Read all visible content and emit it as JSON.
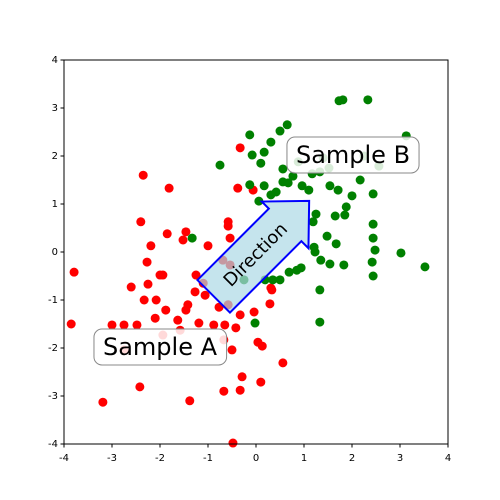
{
  "chart_data": {
    "type": "scatter",
    "xlim": [
      -4,
      4
    ],
    "ylim": [
      -4,
      4
    ],
    "xticks": [
      -4,
      -3,
      -2,
      -1,
      0,
      1,
      2,
      3,
      4
    ],
    "yticks": [
      -4,
      -3,
      -2,
      -1,
      0,
      1,
      2,
      3,
      4
    ],
    "annotations": [
      "Sample A",
      "Sample B",
      "Direction"
    ],
    "series": [
      {
        "color": "#ff0000",
        "x": [
          -3.79,
          -3.85,
          -3.19,
          -2.42,
          -2.35,
          -2.4,
          -1.81,
          -2.19,
          -2.27,
          -2.25,
          -2.6,
          -2.33,
          -2.0,
          -1.94,
          -2.08,
          -1.85,
          -1.46,
          -1.52,
          -1.0,
          -1.25,
          -1.27,
          -1.06,
          -1.1,
          -1.42,
          -1.46,
          -1.63,
          -1.58,
          -1.88,
          -2.1,
          -1.94,
          -2.48,
          -2.75,
          -3.0,
          -2.75,
          -1.19,
          -0.88,
          -0.65,
          -0.42,
          -0.33,
          -0.58,
          -0.77,
          -0.04,
          0.29,
          0.33,
          0.31,
          0.04,
          0.13,
          -0.67,
          -0.5,
          0.1,
          -0.29,
          -0.33,
          -0.67,
          -0.48,
          0.56,
          -1.38,
          -0.58,
          -0.58,
          -0.38,
          -0.06,
          -0.33,
          -0.69,
          -0.54,
          -0.54
        ],
        "y": [
          -0.42,
          -1.5,
          -3.13,
          -2.81,
          1.6,
          0.63,
          1.33,
          0.13,
          -0.21,
          -0.67,
          -0.73,
          -1.0,
          -0.48,
          -0.48,
          -1.0,
          0.38,
          0.42,
          0.25,
          0.13,
          -0.48,
          -0.83,
          -0.9,
          -0.65,
          -1.1,
          -1.21,
          -1.42,
          -1.63,
          -1.21,
          -1.38,
          -1.73,
          -1.52,
          -1.52,
          -1.52,
          -2.04,
          -1.48,
          -1.52,
          -1.52,
          -1.58,
          -1.31,
          -1.1,
          -1.15,
          -1.25,
          -1.08,
          -0.79,
          -0.75,
          -1.88,
          -1.96,
          -1.83,
          -2.04,
          -2.71,
          -2.6,
          -2.88,
          -2.9,
          -3.98,
          -2.31,
          -3.1,
          0.63,
          0.54,
          1.33,
          1.29,
          2.17,
          -0.17,
          -0.27,
          0.29
        ]
      },
      {
        "color": "#008000",
        "x": [
          3.52,
          3.02,
          2.42,
          2.44,
          2.48,
          2.44,
          2.44,
          2.44,
          2.0,
          1.88,
          1.71,
          1.54,
          1.85,
          1.65,
          1.67,
          1.83,
          1.54,
          1.35,
          1.48,
          1.25,
          1.19,
          1.21,
          1.33,
          1.23,
          0.94,
          0.69,
          0.85,
          1.17,
          1.33,
          1.52,
          1.81,
          1.73,
          2.33,
          2.56,
          3.13,
          2.17,
          1.4,
          0.88,
          0.65,
          0.5,
          0.31,
          0.17,
          0.1,
          0.17,
          0.31,
          0.42,
          0.77,
          0.67,
          1.1,
          0.96,
          0.06,
          -0.13,
          -0.08,
          -0.13,
          -0.75,
          -1.33,
          -0.02,
          -0.25,
          0.19,
          0.35,
          0.5,
          1.33,
          2.25,
          0.56,
          0.56
        ],
        "y": [
          -0.31,
          -0.02,
          -0.21,
          -0.5,
          0.04,
          0.29,
          0.58,
          1.21,
          1.17,
          0.94,
          1.29,
          1.38,
          0.77,
          0.75,
          0.17,
          -0.27,
          -0.25,
          -0.17,
          0.33,
          0.79,
          0.63,
          0.1,
          -0.79,
          0,
          -0.33,
          -0.42,
          -0.38,
          1.63,
          1.67,
          1.75,
          3.17,
          3.15,
          3.17,
          1.79,
          2.42,
          1.5,
          1.96,
          1.88,
          2.65,
          2.52,
          2.29,
          2.08,
          1.85,
          1.38,
          1.19,
          1.25,
          1.58,
          1.44,
          1.29,
          1.38,
          1.06,
          1.4,
          2.02,
          2.44,
          1.81,
          0.29,
          -1.48,
          -0.58,
          -0.58,
          -0.58,
          -0.58,
          -1.46,
          2.0,
          1.46,
          1.73
        ]
      }
    ]
  }
}
